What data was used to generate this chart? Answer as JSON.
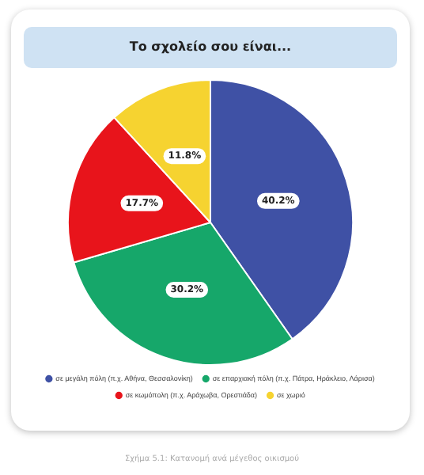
{
  "chart_data": {
    "type": "pie",
    "title": "Το σχολείο σου είναι...",
    "categories": [
      "σε μεγάλη πόλη (π.χ. Αθήνα, Θεσσαλονίκη)",
      "σε επαρχιακή πόλη (π.χ. Πάτρα, Ηράκλειο, Λάρισα)",
      "σε κωμόπολη (π.χ. Αράχωβα, Ορεστιάδα)",
      "σε χωριό"
    ],
    "values": [
      40.2,
      30.2,
      17.7,
      11.8
    ],
    "colors": [
      "#3f51a5",
      "#16a76a",
      "#e8141b",
      "#f6d330"
    ],
    "value_labels": [
      "40.2%",
      "30.2%",
      "17.7%",
      "11.8%"
    ],
    "legend": "bottom",
    "annotations": [
      "Σχήμα 5.1: Κατανομή ανά μέγεθος οικισμού"
    ]
  }
}
